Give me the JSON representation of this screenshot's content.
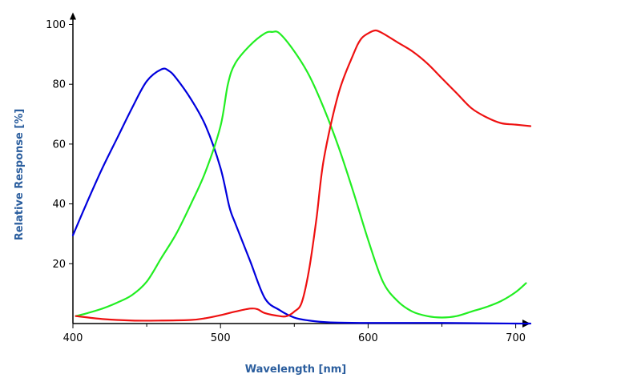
{
  "chart_data": {
    "type": "line",
    "xlabel": "Wavelength [nm]",
    "ylabel": "Relative Response [%]",
    "xlim": [
      400,
      710
    ],
    "ylim": [
      0,
      104
    ],
    "xticks": [
      400,
      500,
      600,
      700
    ],
    "yticks": [
      20,
      40,
      60,
      80,
      100
    ],
    "grid": false,
    "legend": "none",
    "series": [
      {
        "color": "#0000dd",
        "x": [
          400,
          410,
          420,
          430,
          440,
          450,
          460,
          465,
          470,
          480,
          490,
          500,
          506,
          510,
          520,
          530,
          540,
          550,
          560,
          570,
          580,
          600,
          650,
          700,
          710
        ],
        "y": [
          29.5,
          41,
          52,
          62,
          72,
          81,
          85,
          84.5,
          82,
          75,
          66,
          52,
          39,
          33.5,
          21,
          8.5,
          4.5,
          2,
          1,
          0.5,
          0.3,
          0.2,
          0.2,
          0,
          0
        ]
      },
      {
        "color": "#22ee22",
        "x": [
          402,
          410,
          420,
          430,
          440,
          450,
          460,
          470,
          480,
          490,
          500,
          505,
          510,
          520,
          530,
          535,
          540,
          550,
          560,
          570,
          580,
          590,
          600,
          610,
          620,
          630,
          640,
          650,
          660,
          670,
          680,
          690,
          700,
          707
        ],
        "y": [
          2.5,
          3.5,
          5,
          7,
          9.5,
          14,
          22,
          30,
          40,
          51,
          66,
          80,
          87,
          93,
          97,
          97.5,
          97,
          91,
          83,
          72,
          59,
          44,
          28,
          14,
          7.5,
          4,
          2.5,
          2,
          2.5,
          4,
          5.5,
          7.5,
          10.5,
          13.5
        ]
      },
      {
        "color": "#ee1111",
        "x": [
          402,
          420,
          440,
          460,
          480,
          490,
          500,
          510,
          520,
          525,
          530,
          540,
          545,
          550,
          555,
          560,
          565,
          570,
          580,
          590,
          595,
          600,
          605,
          610,
          620,
          630,
          640,
          650,
          660,
          670,
          680,
          690,
          700,
          710
        ],
        "y": [
          2.5,
          1.5,
          1,
          1,
          1.2,
          1.8,
          2.8,
          4,
          5,
          4.8,
          3.5,
          2.5,
          2.5,
          4,
          7,
          18,
          35,
          55,
          77,
          90,
          95,
          97,
          98,
          97,
          94,
          91,
          87,
          82,
          77,
          72,
          69,
          67,
          66.5,
          66
        ]
      }
    ]
  }
}
